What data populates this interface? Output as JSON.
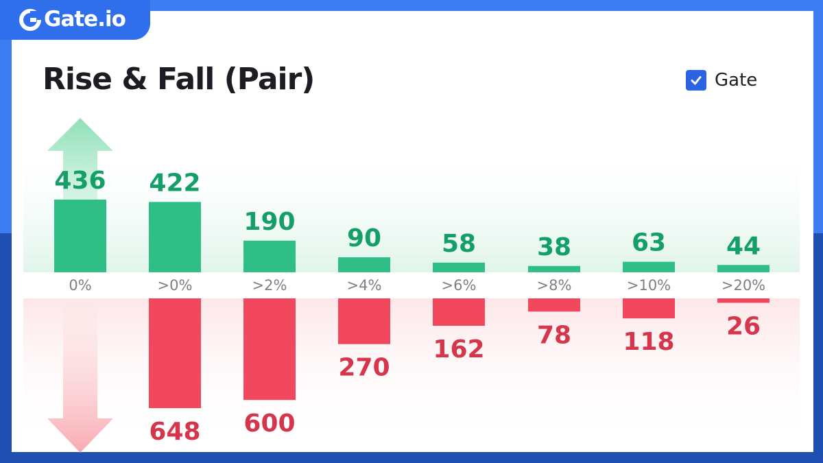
{
  "brand": {
    "logo_text": "Gate.io"
  },
  "title": "Rise & Fall (Pair)",
  "legend": {
    "label": "Gate",
    "checked": true
  },
  "colors": {
    "rise": "#2fbf86",
    "rise_text": "#149f68",
    "fall": "#f1485e",
    "fall_text": "#d6364c",
    "accent": "#2b63e3"
  },
  "chart_data": {
    "type": "bar",
    "title": "Rise & Fall (Pair)",
    "categories": [
      "0%",
      ">0%",
      ">2%",
      ">4%",
      ">6%",
      ">8%",
      ">10%",
      ">20%"
    ],
    "series": [
      {
        "name": "Rise",
        "values": [
          436,
          422,
          190,
          90,
          58,
          38,
          63,
          44
        ]
      },
      {
        "name": "Fall",
        "values": [
          null,
          648,
          600,
          270,
          162,
          78,
          118,
          26
        ]
      }
    ],
    "legend": [
      "Gate"
    ],
    "grid": false
  }
}
